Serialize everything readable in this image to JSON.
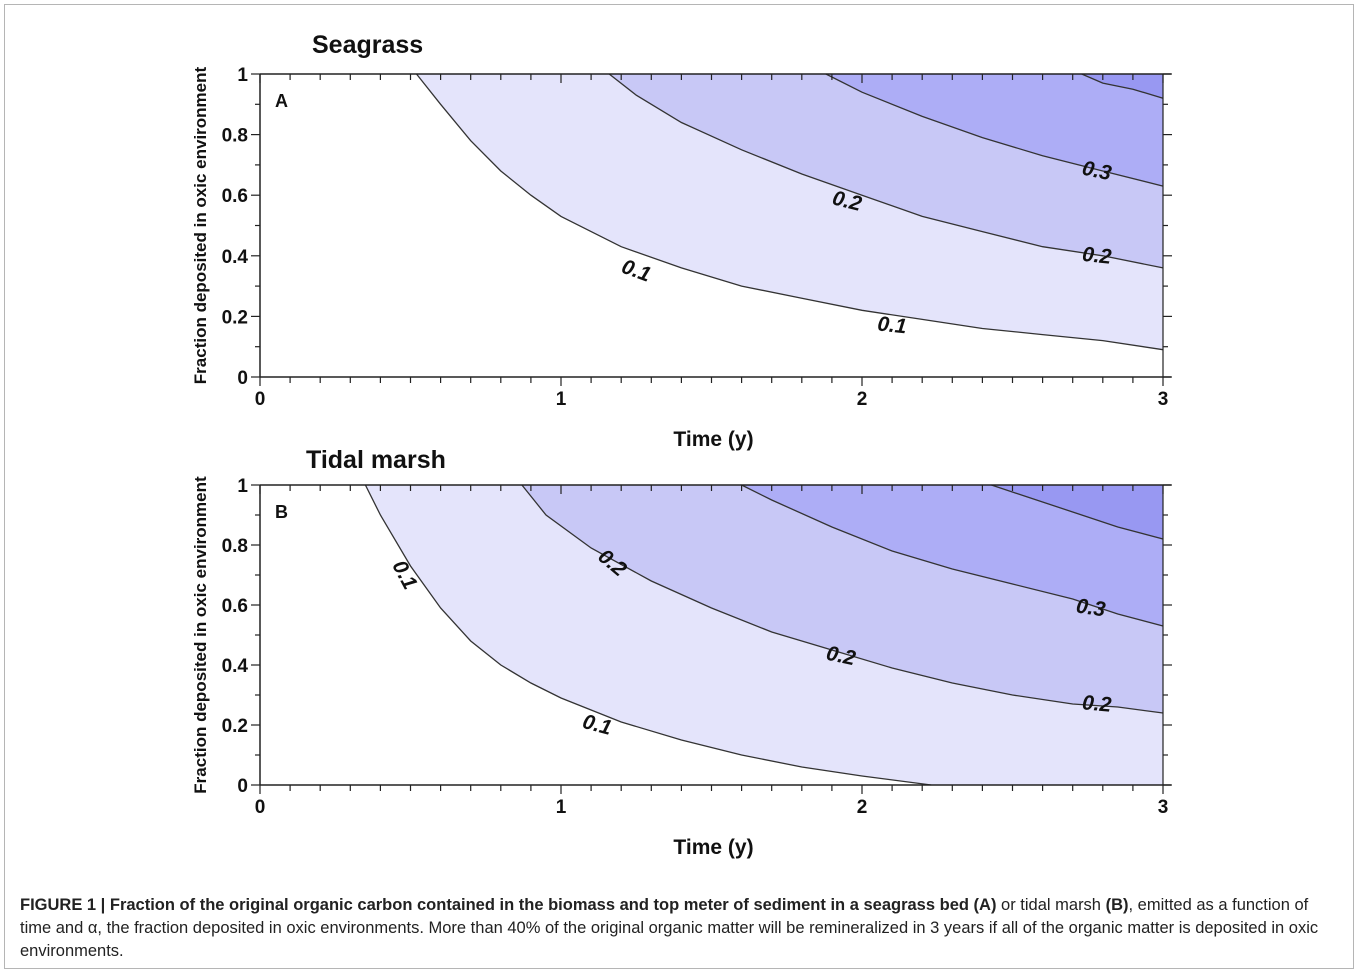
{
  "colors": {
    "band_lt_0_1": "#ffffff",
    "band_0_1_to_0_2": "#e4e4fb",
    "band_0_2_to_0_3": "#c8c8f6",
    "band_0_3_to_0_4": "#adadf6",
    "band_gt_0_4": "#9898f2",
    "contour_line": "#333333"
  },
  "chart_data": [
    {
      "type": "contour",
      "panel_label": "A",
      "title": "Seagrass",
      "xlabel": "Time (y)",
      "ylabel": "Fraction deposited in oxic environment",
      "xlim": [
        0,
        3
      ],
      "ylim": [
        0,
        1
      ],
      "x_ticks": [
        "0",
        "1",
        "2",
        "3"
      ],
      "y_ticks": [
        "0",
        "0.2",
        "0.4",
        "0.6",
        "0.8",
        "1"
      ],
      "contours": [
        {
          "level": 0.1,
          "points": [
            [
              0.52,
              1.0
            ],
            [
              0.6,
              0.9
            ],
            [
              0.7,
              0.78
            ],
            [
              0.8,
              0.68
            ],
            [
              0.9,
              0.6
            ],
            [
              1.0,
              0.53
            ],
            [
              1.2,
              0.43
            ],
            [
              1.4,
              0.36
            ],
            [
              1.6,
              0.3
            ],
            [
              1.8,
              0.26
            ],
            [
              2.0,
              0.22
            ],
            [
              2.2,
              0.19
            ],
            [
              2.4,
              0.16
            ],
            [
              2.6,
              0.14
            ],
            [
              2.8,
              0.12
            ],
            [
              3.0,
              0.09
            ]
          ]
        },
        {
          "level": 0.2,
          "points": [
            [
              1.16,
              1.0
            ],
            [
              1.25,
              0.93
            ],
            [
              1.4,
              0.84
            ],
            [
              1.6,
              0.75
            ],
            [
              1.8,
              0.67
            ],
            [
              2.0,
              0.6
            ],
            [
              2.2,
              0.53
            ],
            [
              2.4,
              0.48
            ],
            [
              2.6,
              0.43
            ],
            [
              2.8,
              0.4
            ],
            [
              3.0,
              0.36
            ]
          ]
        },
        {
          "level": 0.3,
          "points": [
            [
              1.88,
              1.0
            ],
            [
              2.0,
              0.94
            ],
            [
              2.2,
              0.86
            ],
            [
              2.4,
              0.79
            ],
            [
              2.6,
              0.73
            ],
            [
              2.8,
              0.68
            ],
            [
              3.0,
              0.63
            ]
          ]
        },
        {
          "level": 0.4,
          "points": [
            [
              2.73,
              1.0
            ],
            [
              2.8,
              0.97
            ],
            [
              2.9,
              0.95
            ],
            [
              3.0,
              0.92
            ]
          ]
        }
      ],
      "contour_labels": [
        {
          "text": "0.1",
          "x": 1.25,
          "y": 0.35,
          "rotate": 20
        },
        {
          "text": "0.1",
          "x": 2.1,
          "y": 0.17,
          "rotate": 6
        },
        {
          "text": "0.2",
          "x": 1.95,
          "y": 0.58,
          "rotate": 14
        },
        {
          "text": "0.2",
          "x": 2.78,
          "y": 0.4,
          "rotate": 6
        },
        {
          "text": "0.3",
          "x": 2.78,
          "y": 0.68,
          "rotate": 12
        }
      ]
    },
    {
      "type": "contour",
      "panel_label": "B",
      "title": "Tidal marsh",
      "xlabel": "Time (y)",
      "ylabel": "Fraction deposited in oxic environment",
      "xlim": [
        0,
        3
      ],
      "ylim": [
        0,
        1
      ],
      "x_ticks": [
        "0",
        "1",
        "2",
        "3"
      ],
      "y_ticks": [
        "0",
        "0.2",
        "0.4",
        "0.6",
        "0.8",
        "1"
      ],
      "contours": [
        {
          "level": 0.1,
          "points": [
            [
              0.35,
              1.0
            ],
            [
              0.4,
              0.9
            ],
            [
              0.5,
              0.73
            ],
            [
              0.6,
              0.59
            ],
            [
              0.7,
              0.48
            ],
            [
              0.8,
              0.4
            ],
            [
              0.9,
              0.34
            ],
            [
              1.0,
              0.29
            ],
            [
              1.2,
              0.21
            ],
            [
              1.4,
              0.15
            ],
            [
              1.6,
              0.1
            ],
            [
              1.8,
              0.06
            ],
            [
              2.0,
              0.03
            ],
            [
              2.23,
              0.0
            ]
          ]
        },
        {
          "level": 0.2,
          "points": [
            [
              0.87,
              1.0
            ],
            [
              0.95,
              0.9
            ],
            [
              1.1,
              0.79
            ],
            [
              1.3,
              0.68
            ],
            [
              1.5,
              0.59
            ],
            [
              1.7,
              0.51
            ],
            [
              1.9,
              0.45
            ],
            [
              2.1,
              0.39
            ],
            [
              2.3,
              0.34
            ],
            [
              2.5,
              0.3
            ],
            [
              2.7,
              0.27
            ],
            [
              2.85,
              0.26
            ],
            [
              3.0,
              0.24
            ]
          ]
        },
        {
          "level": 0.3,
          "points": [
            [
              1.6,
              1.0
            ],
            [
              1.7,
              0.95
            ],
            [
              1.9,
              0.86
            ],
            [
              2.1,
              0.78
            ],
            [
              2.3,
              0.72
            ],
            [
              2.5,
              0.67
            ],
            [
              2.7,
              0.62
            ],
            [
              2.85,
              0.57
            ],
            [
              3.0,
              0.53
            ]
          ]
        },
        {
          "level": 0.4,
          "points": [
            [
              2.43,
              1.0
            ],
            [
              2.55,
              0.96
            ],
            [
              2.7,
              0.91
            ],
            [
              2.85,
              0.86
            ],
            [
              3.0,
              0.82
            ]
          ]
        }
      ],
      "contour_labels": [
        {
          "text": "0.1",
          "x": 0.48,
          "y": 0.7,
          "rotate": 62
        },
        {
          "text": "0.2",
          "x": 1.17,
          "y": 0.74,
          "rotate": 40
        },
        {
          "text": "0.1",
          "x": 1.12,
          "y": 0.2,
          "rotate": 15
        },
        {
          "text": "0.2",
          "x": 1.93,
          "y": 0.43,
          "rotate": 12
        },
        {
          "text": "0.3",
          "x": 2.76,
          "y": 0.59,
          "rotate": 8
        },
        {
          "text": "0.2",
          "x": 2.78,
          "y": 0.27,
          "rotate": 5
        }
      ]
    }
  ],
  "caption": {
    "label": "FIGURE 1 | Fraction of the original organic carbon contained in the biomass and top meter of sediment in a seagrass bed (A)",
    "mid": " or tidal marsh ",
    "bold_b": "(B)",
    "rest": ", emitted as a function of time and α, the fraction deposited in oxic environments. More than 40% of the original organic matter will be remineralized in 3 years if all of the organic matter is deposited in oxic environments."
  }
}
